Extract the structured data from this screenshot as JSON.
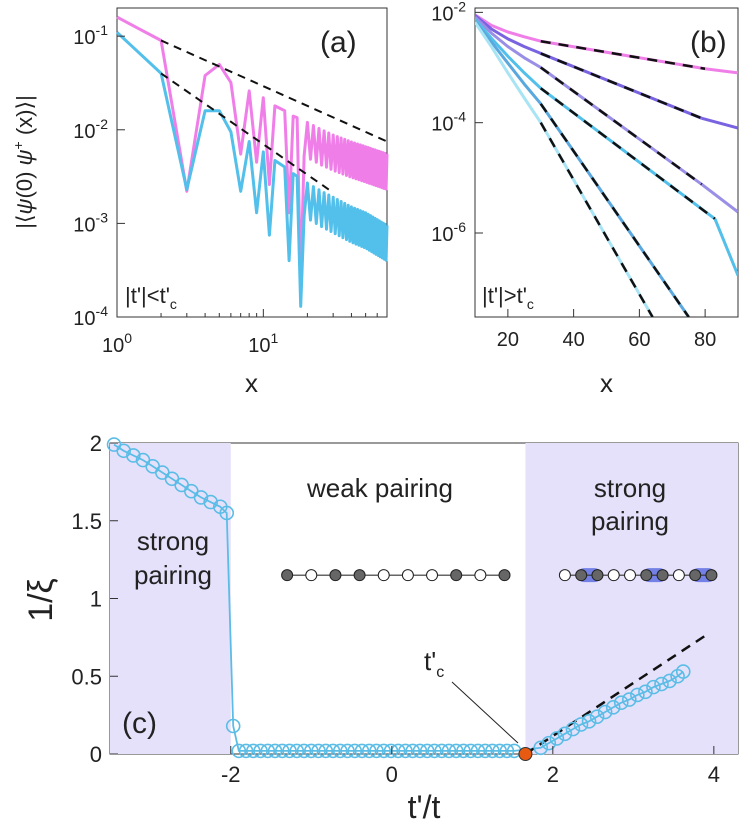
{
  "panels": {
    "a": {
      "tag": "(a)",
      "inset_label": "|t'|<t'",
      "inset_sub": "c"
    },
    "b": {
      "tag": "(b)",
      "inset_label": "|t'|>t'",
      "inset_sub": "c"
    },
    "c": {
      "tag": "(c)"
    }
  },
  "colors": {
    "pink": "#f07ee8",
    "cyan": "#52c0ea",
    "lavender": "#e6e1fb",
    "marker_edge": "#5bbde6",
    "critical": "#e65a12"
  },
  "chart_data": [
    {
      "id": "a",
      "type": "line",
      "x_scale": "log",
      "y_scale": "log",
      "xlim": [
        1,
        70
      ],
      "ylim": [
        0.0001,
        0.2
      ],
      "xlabel": "x",
      "ylabel_parts": [
        "|⟨",
        "ψ",
        "(0) ",
        "ψ",
        "+",
        " (x)⟩|"
      ],
      "x_ticks": [
        {
          "value": 1,
          "base": "10",
          "exp": "0"
        },
        {
          "value": 10,
          "base": "10",
          "exp": "1"
        }
      ],
      "y_ticks": [
        {
          "value": 0.1,
          "base": "10",
          "exp": "-1"
        },
        {
          "value": 0.01,
          "base": "10",
          "exp": "-2"
        },
        {
          "value": 0.001,
          "base": "10",
          "exp": "-3"
        },
        {
          "value": 0.0001,
          "base": "10",
          "exp": "-4"
        }
      ],
      "series": [
        {
          "color": "pink",
          "peak_x": [
            1,
            2,
            4,
            5,
            6,
            8,
            10,
            12,
            14,
            16,
            18,
            20,
            25,
            30,
            40,
            50,
            70
          ],
          "peak_y": [
            0.16,
            0.09,
            0.038,
            0.05,
            0.032,
            0.026,
            0.022,
            0.018,
            0.016,
            0.014,
            0.013,
            0.012,
            0.01,
            0.0088,
            0.0074,
            0.0066,
            0.0055
          ],
          "dip_x": [
            3,
            7,
            9,
            11,
            15,
            18
          ],
          "dip_y": [
            0.0022,
            0.0055,
            0.0045,
            0.0026,
            0.0013,
            0.00024
          ]
        },
        {
          "color": "cyan",
          "peak_x": [
            1,
            2,
            4,
            5,
            6,
            8,
            10,
            12,
            14,
            16,
            18,
            20,
            25,
            30,
            40,
            50,
            70
          ],
          "peak_y": [
            0.11,
            0.04,
            0.016,
            0.016,
            0.0095,
            0.0075,
            0.0058,
            0.0047,
            0.004,
            0.0034,
            0.003,
            0.0027,
            0.0022,
            0.0019,
            0.0015,
            0.0013,
            0.00095
          ],
          "dip_x": [
            3,
            7,
            9,
            11,
            15,
            18
          ],
          "dip_y": [
            0.0023,
            0.0022,
            0.0013,
            0.00075,
            0.0004,
            0.00013
          ]
        }
      ],
      "fits": [
        {
          "x": [
            2,
            70
          ],
          "y": [
            0.09,
            0.0075
          ]
        },
        {
          "x": [
            2,
            28
          ],
          "y": [
            0.04,
            0.0023
          ]
        }
      ]
    },
    {
      "id": "b",
      "type": "line",
      "y_scale": "log",
      "xlim": [
        10,
        90
      ],
      "ylim": [
        3e-08,
        0.012
      ],
      "xlabel": "x",
      "x_ticks": [
        20,
        40,
        60,
        80
      ],
      "y_ticks": [
        {
          "value": 0.01,
          "base": "10",
          "exp": "-2"
        },
        {
          "value": 0.0001,
          "base": "10",
          "exp": "-4"
        },
        {
          "value": 1e-06,
          "base": "10",
          "exp": "-6"
        }
      ],
      "series": [
        {
          "color": "#f07ee8",
          "x": [
            10,
            15,
            20,
            25,
            30
          ],
          "y": [
            0.009,
            0.0058,
            0.0044,
            0.0036,
            0.003
          ],
          "fit": {
            "x": [
              30,
              80
            ],
            "y": [
              0.003,
              0.00095
            ]
          },
          "tail": {
            "x": [
              80,
              90
            ],
            "y": [
              0.00095,
              0.0008
            ]
          }
        },
        {
          "color": "#7a63e0",
          "x": [
            10,
            15,
            20,
            25,
            30
          ],
          "y": [
            0.0088,
            0.005,
            0.0033,
            0.0024,
            0.0018
          ],
          "fit": {
            "x": [
              30,
              79
            ],
            "y": [
              0.0018,
              0.00012
            ]
          },
          "tail": {
            "x": [
              79,
              90
            ],
            "y": [
              0.00012,
              8e-05
            ]
          }
        },
        {
          "color": "#9a8fe6",
          "x": [
            10,
            15,
            20,
            25,
            30
          ],
          "y": [
            0.0082,
            0.0042,
            0.0024,
            0.0015,
            0.001
          ],
          "fit": {
            "x": [
              30,
              79
            ],
            "y": [
              0.001,
              7.6e-06
            ]
          },
          "tail": {
            "x": [
              79,
              90
            ],
            "y": [
              7.6e-06,
              2.4e-06
            ]
          }
        },
        {
          "color": "#52c0ea",
          "x": [
            10,
            15,
            20,
            25,
            30
          ],
          "y": [
            0.0075,
            0.0034,
            0.0016,
            0.0008,
            0.00042
          ],
          "fit": {
            "x": [
              30,
              83
            ],
            "y": [
              0.00042,
              1.8e-06
            ]
          },
          "tail": {
            "x": [
              83,
              90
            ],
            "y": [
              1.8e-06,
              1.7e-07
            ]
          }
        },
        {
          "color": "#5aa8de",
          "x": [
            10,
            15,
            20,
            25,
            30
          ],
          "y": [
            0.007,
            0.0029,
            0.0012,
            0.0005,
            0.00022
          ],
          "fit": {
            "x": [
              30,
              75
            ],
            "y": [
              0.00022,
              3e-08
            ]
          },
          "tail": null
        },
        {
          "color": "#a8e4f4",
          "x": [
            10,
            15,
            20,
            25,
            30
          ],
          "y": [
            0.0066,
            0.0024,
            0.0008,
            0.00028,
            0.0001
          ],
          "fit": {
            "x": [
              30,
              64
            ],
            "y": [
              0.0001,
              3e-08
            ]
          },
          "tail": null
        }
      ]
    },
    {
      "id": "c",
      "type": "scatter",
      "xlim": [
        -3.5,
        4.3
      ],
      "ylim": [
        0,
        2
      ],
      "xlabel": "t'/t",
      "ylabel": "1/ξ",
      "x_ticks": [
        -2,
        0,
        2,
        4
      ],
      "y_ticks": [
        0,
        0.5,
        1,
        1.5,
        2
      ],
      "y_tick_labels": [
        "0",
        "0.5",
        "1",
        "1.5",
        "2"
      ],
      "x_tick_labels": [
        "-2",
        "0",
        "2",
        "4"
      ],
      "shaded_regions": [
        [
          -3.5,
          -2
        ],
        [
          1.66,
          4.3
        ]
      ],
      "critical_point": {
        "x": 1.66,
        "y": 0,
        "label_main": "t'",
        "label_sub": "c"
      },
      "labels": {
        "weak": "weak pairing",
        "strong_left_1": "strong",
        "strong_left_2": "pairing",
        "strong_right_1": "strong",
        "strong_right_2": "pairing"
      },
      "fit": {
        "x": [
          1.66,
          3.95
        ],
        "y": [
          0,
          0.78
        ]
      },
      "left_branch": {
        "x": [
          -3.45,
          -3.33,
          -3.21,
          -3.09,
          -2.97,
          -2.85,
          -2.73,
          -2.61,
          -2.49,
          -2.37,
          -2.25,
          -2.13,
          -2.05,
          -1.97
        ],
        "y": [
          1.99,
          1.95,
          1.92,
          1.89,
          1.85,
          1.81,
          1.77,
          1.73,
          1.69,
          1.65,
          1.62,
          1.59,
          1.55,
          0.18
        ]
      },
      "flat_x_start": -1.9,
      "flat_x_end": 1.6,
      "flat_step": 0.09,
      "flat_y": 0.02,
      "right_branch": {
        "x": [
          1.85,
          1.95,
          2.05,
          2.15,
          2.25,
          2.35,
          2.45,
          2.55,
          2.65,
          2.75,
          2.85,
          2.95,
          3.05,
          3.15,
          3.25,
          3.35,
          3.45,
          3.55,
          3.62
        ],
        "y": [
          0.04,
          0.07,
          0.1,
          0.13,
          0.16,
          0.19,
          0.21,
          0.24,
          0.27,
          0.3,
          0.33,
          0.35,
          0.38,
          0.4,
          0.43,
          0.45,
          0.47,
          0.5,
          0.53
        ]
      },
      "chains": {
        "weak": {
          "x0": -1.3,
          "x1": 1.4,
          "y": 1.15,
          "pattern": [
            "gray",
            "white",
            "gray",
            "gray",
            "white",
            "white",
            "white",
            "gray",
            "white",
            "gray"
          ]
        },
        "strong": {
          "x0": 2.15,
          "x1": 3.97,
          "y": 1.15,
          "pattern": [
            "white",
            "gray",
            "gray",
            "white",
            "white",
            "gray",
            "gray",
            "white",
            "gray",
            "gray"
          ],
          "pairs": [
            [
              1,
              2
            ],
            [
              5,
              6
            ],
            [
              8,
              9
            ]
          ]
        }
      }
    }
  ]
}
